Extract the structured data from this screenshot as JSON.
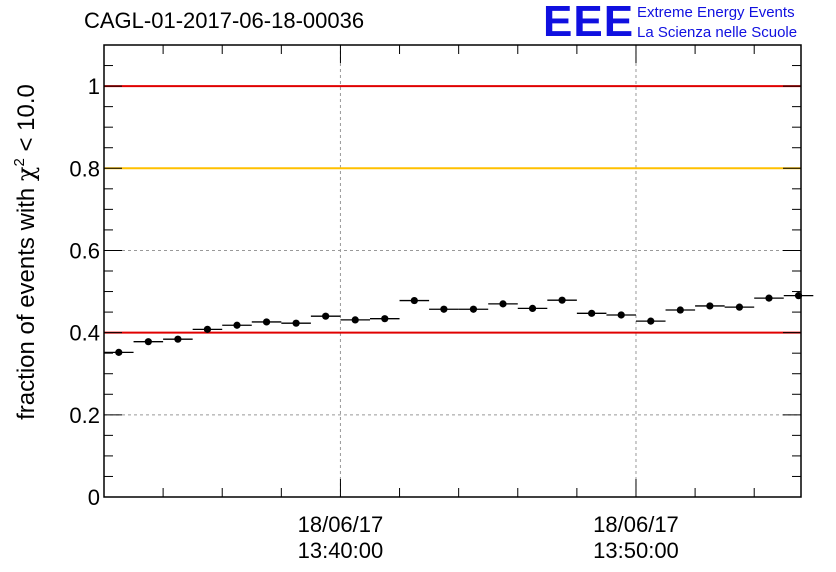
{
  "header": {
    "run_title": "CAGL-01-2017-06-18-00036",
    "logo": {
      "mark": "EEE",
      "line1": "Extreme Energy Events",
      "line2": "La Scienza nelle Scuole"
    }
  },
  "chart_data": {
    "type": "scatter",
    "title": "CAGL-01-2017-06-18-00036",
    "ylabel_parts": [
      "fraction of events with ",
      "χ",
      "2",
      " < 10.0"
    ],
    "xlim": [
      "2017-06-18 13:32:00",
      "2017-06-18 13:55:35"
    ],
    "ylim": [
      0,
      1.1
    ],
    "grid": true,
    "y_ticks": [
      {
        "value": 0,
        "label": "0"
      },
      {
        "value": 0.2,
        "label": "0.2"
      },
      {
        "value": 0.4,
        "label": "0.4"
      },
      {
        "value": 0.6,
        "label": "0.6"
      },
      {
        "value": 0.8,
        "label": "0.8"
      },
      {
        "value": 1,
        "label": "1"
      }
    ],
    "x_ticks": [
      {
        "value": "2017-06-18 13:40:00",
        "label_date": "18/06/17",
        "label_time": "13:40:00"
      },
      {
        "value": "2017-06-18 13:50:00",
        "label_date": "18/06/17",
        "label_time": "13:50:00"
      }
    ],
    "reference_lines": [
      {
        "y": 1.0,
        "color": "#e00000"
      },
      {
        "y": 0.8,
        "color": "#ffc000"
      },
      {
        "y": 0.4,
        "color": "#e00000"
      }
    ],
    "marker_color": "#000000",
    "bin_width_minutes": 1,
    "series": [
      {
        "x": [
          "13:32:30",
          "13:33:30",
          "13:34:30",
          "13:35:30",
          "13:36:30",
          "13:37:30",
          "13:38:30",
          "13:39:30",
          "13:40:30",
          "13:41:30",
          "13:42:30",
          "13:43:30",
          "13:44:30",
          "13:45:30",
          "13:46:30",
          "13:47:30",
          "13:48:30",
          "13:49:30",
          "13:50:30",
          "13:51:30",
          "13:52:30",
          "13:53:30",
          "13:54:30",
          "13:55:30"
        ],
        "y": [
          0.352,
          0.378,
          0.384,
          0.408,
          0.418,
          0.426,
          0.423,
          0.44,
          0.431,
          0.434,
          0.478,
          0.457,
          0.457,
          0.47,
          0.459,
          0.479,
          0.447,
          0.443,
          0.428,
          0.455,
          0.465,
          0.462,
          0.484,
          0.49
        ]
      }
    ]
  }
}
